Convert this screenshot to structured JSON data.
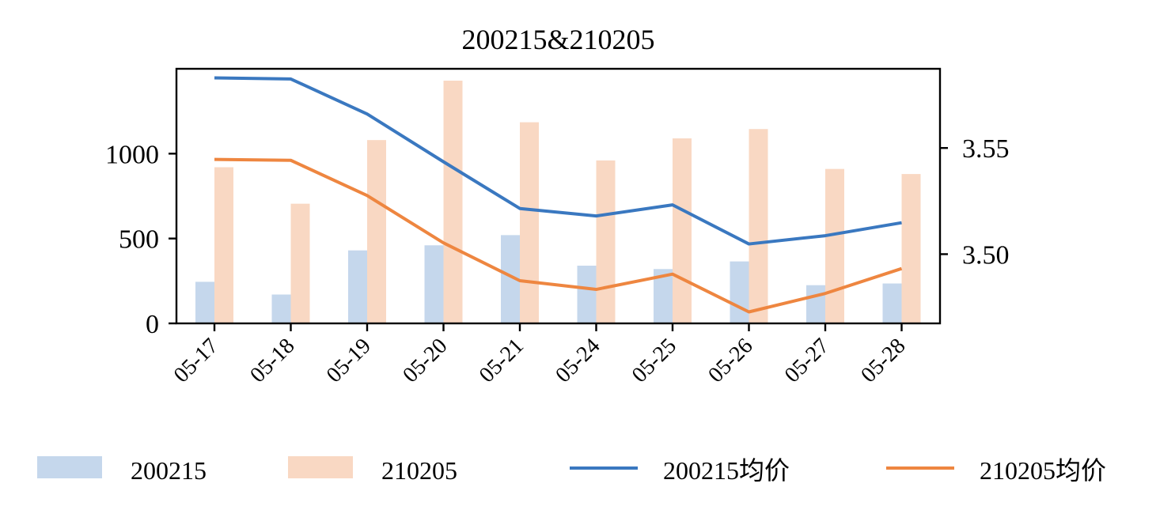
{
  "chart_data": {
    "type": "bar",
    "title": "200215&210205",
    "categories": [
      "05-17",
      "05-18",
      "05-19",
      "05-20",
      "05-21",
      "05-24",
      "05-25",
      "05-26",
      "05-27",
      "05-28"
    ],
    "bar_series": [
      {
        "name": "200215",
        "color": "#c5d7ec",
        "values": [
          245,
          170,
          430,
          460,
          520,
          340,
          320,
          365,
          225,
          235
        ]
      },
      {
        "name": "210205",
        "color": "#f9d8c3",
        "values": [
          920,
          705,
          1080,
          1430,
          1185,
          960,
          1090,
          1145,
          910,
          880
        ]
      }
    ],
    "line_series": [
      {
        "name": "200215均价",
        "color": "#3a78c0",
        "axis": "right",
        "values": [
          3.583,
          3.5825,
          3.566,
          3.5435,
          3.5215,
          3.518,
          3.5232,
          3.5048,
          3.5087,
          3.5148
        ]
      },
      {
        "name": "210205均价",
        "color": "#ee8640",
        "axis": "right",
        "values": [
          3.5446,
          3.5442,
          3.5276,
          3.5053,
          3.4875,
          3.4834,
          3.4906,
          3.4728,
          3.4815,
          3.4932
        ]
      }
    ],
    "y_left": {
      "ticks": [
        0,
        500,
        1000
      ],
      "range": [
        0,
        1500
      ]
    },
    "y_right": {
      "ticks": [
        3.5,
        3.55
      ],
      "tick_labels": [
        "3.50",
        "3.55"
      ],
      "range": [
        3.4674,
        3.5873
      ]
    },
    "legend_position": "bottom"
  }
}
